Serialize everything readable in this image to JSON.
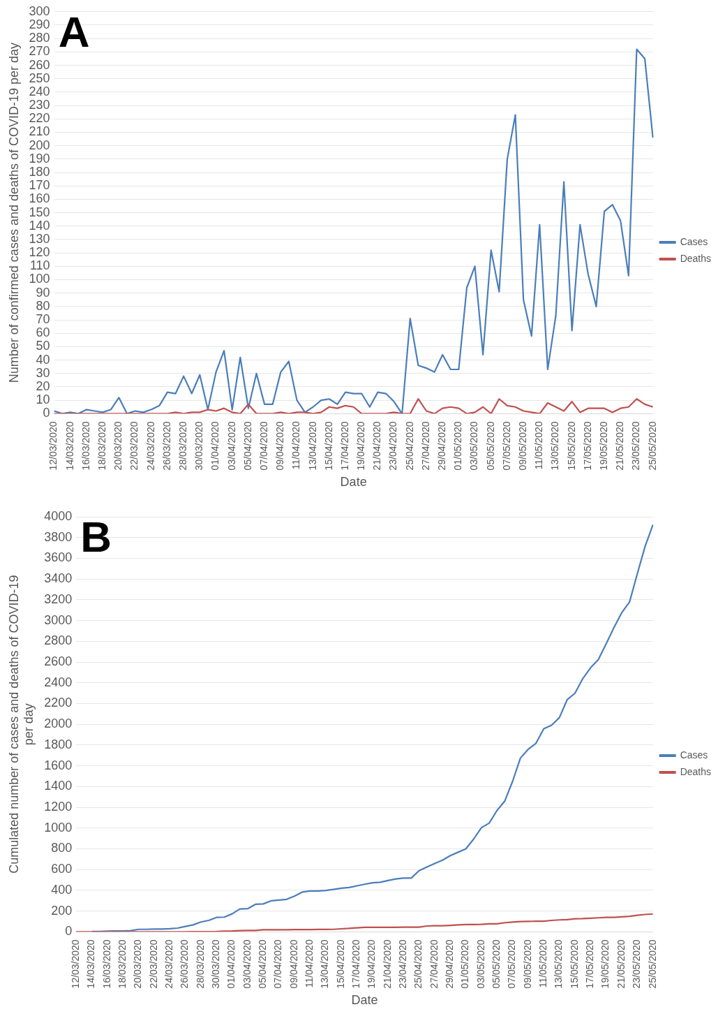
{
  "chart_data": [
    {
      "type": "line",
      "title": "A",
      "xlabel": "Date",
      "ylabel": "Number of confirmed cases and deaths of COVID-19 per day",
      "categories": [
        "12/03/2020",
        null,
        "14/03/2020",
        null,
        "16/03/2020",
        null,
        "18/03/2020",
        null,
        "20/03/2020",
        null,
        "22/03/2020",
        null,
        "24/03/2020",
        null,
        "26/03/2020",
        null,
        "28/03/2020",
        null,
        "30/03/2020",
        null,
        "01/04/2020",
        null,
        "03/04/2020",
        null,
        "05/04/2020",
        null,
        "07/04/2020",
        null,
        "09/04/2020",
        null,
        "11/04/2020",
        null,
        "13/04/2020",
        null,
        "15/04/2020",
        null,
        "17/04/2020",
        null,
        "19/04/2020",
        null,
        "21/04/2020",
        null,
        "23/04/2020",
        null,
        "25/04/2020",
        null,
        "27/04/2020",
        null,
        "29/04/2020",
        null,
        "01/05/2020",
        null,
        "03/05/2020",
        null,
        "05/05/2020",
        null,
        "07/05/2020",
        null,
        "09/05/2020",
        null,
        "11/05/2020",
        null,
        "13/05/2020",
        null,
        "15/05/2020",
        null,
        "17/05/2020",
        null,
        "19/05/2020",
        null,
        "21/05/2020",
        null,
        "23/05/2020",
        null,
        "25/05/2020"
      ],
      "series": [
        {
          "name": "Cases",
          "color": "#4a7ebb",
          "values": [
            2,
            0,
            1,
            0,
            3,
            2,
            1,
            3,
            12,
            0,
            2,
            1,
            3,
            6,
            16,
            15,
            28,
            15,
            29,
            3,
            31,
            47,
            3,
            42,
            4,
            30,
            7,
            7,
            31,
            39,
            10,
            1,
            5,
            10,
            11,
            7,
            16,
            15,
            15,
            5,
            16,
            15,
            9,
            0,
            71,
            36,
            34,
            31,
            44,
            33,
            33,
            94,
            110,
            44,
            122,
            91,
            190,
            223,
            85,
            58,
            141,
            33,
            73,
            173,
            62,
            141,
            104,
            80,
            151,
            156,
            144,
            103,
            272,
            265,
            206
          ]
        },
        {
          "name": "Deaths",
          "color": "#c0504d",
          "values": [
            0,
            0,
            0,
            0,
            0,
            0,
            0,
            0,
            0,
            0,
            0,
            0,
            0,
            0,
            0,
            1,
            0,
            1,
            1,
            3,
            2,
            4,
            1,
            0,
            7,
            0,
            0,
            0,
            1,
            0,
            1,
            1,
            0,
            1,
            5,
            4,
            6,
            5,
            0,
            0,
            0,
            0,
            1,
            0,
            0,
            11,
            2,
            0,
            4,
            5,
            4,
            0,
            1,
            5,
            0,
            11,
            6,
            5,
            2,
            1,
            0,
            8,
            5,
            2,
            9,
            1,
            4,
            4,
            4,
            1,
            4,
            5,
            11,
            7,
            5
          ]
        }
      ],
      "ylim": [
        0,
        300
      ],
      "yticks": [
        0,
        10,
        20,
        30,
        40,
        50,
        60,
        70,
        80,
        90,
        100,
        110,
        120,
        130,
        140,
        150,
        160,
        170,
        180,
        190,
        200,
        210,
        220,
        230,
        240,
        250,
        260,
        270,
        280,
        290,
        300
      ],
      "grid": "y",
      "legend": "right",
      "marker": "none",
      "line_style": "solid"
    },
    {
      "type": "line",
      "title": "B",
      "xlabel": "Date",
      "ylabel": "Cumulated number of cases and deaths of COVID-19 per day",
      "categories": [
        "12/03/2020",
        null,
        "14/03/2020",
        null,
        "16/03/2020",
        null,
        "18/03/2020",
        null,
        "20/03/2020",
        null,
        "22/03/2020",
        null,
        "24/03/2020",
        null,
        "26/03/2020",
        null,
        "28/03/2020",
        null,
        "30/03/2020",
        null,
        "01/04/2020",
        null,
        "03/04/2020",
        null,
        "05/04/2020",
        null,
        "07/04/2020",
        null,
        "09/04/2020",
        null,
        "11/04/2020",
        null,
        "13/04/2020",
        null,
        "15/04/2020",
        null,
        "17/04/2020",
        null,
        "19/04/2020",
        null,
        "21/04/2020",
        null,
        "23/04/2020",
        null,
        "25/04/2020",
        null,
        "27/04/2020",
        null,
        "29/04/2020",
        null,
        "01/05/2020",
        null,
        "03/05/2020",
        null,
        "05/05/2020",
        null,
        "07/05/2020",
        null,
        "09/05/2020",
        null,
        "11/05/2020",
        null,
        "13/05/2020",
        null,
        "15/05/2020",
        null,
        "17/05/2020",
        null,
        "19/05/2020",
        null,
        "21/05/2020",
        null,
        "23/05/2020",
        null,
        "25/05/2020"
      ],
      "series": [
        {
          "name": "Cases",
          "color": "#4a7ebb",
          "values": [
            null,
            null,
            3,
            3,
            6,
            8,
            9,
            12,
            24,
            24,
            26,
            27,
            30,
            36,
            52,
            67,
            95,
            110,
            139,
            142,
            173,
            220,
            223,
            265,
            269,
            299,
            306,
            313,
            344,
            383,
            393,
            394,
            399,
            409,
            420,
            427,
            443,
            458,
            473,
            478,
            494,
            509,
            518,
            518,
            589,
            625,
            659,
            690,
            734,
            767,
            800,
            894,
            1004,
            1048,
            1170,
            1261,
            1451,
            1674,
            1759,
            1817,
            1958,
            1991,
            2064,
            2237,
            2299,
            2440,
            2544,
            2624,
            2775,
            2931,
            3075,
            3178,
            3450,
            3715,
            3921
          ]
        },
        {
          "name": "Deaths",
          "color": "#c0504d",
          "values": [
            0,
            0,
            0,
            0,
            0,
            0,
            0,
            0,
            0,
            0,
            0,
            0,
            0,
            0,
            0,
            1,
            1,
            2,
            3,
            6,
            8,
            12,
            13,
            13,
            20,
            20,
            20,
            20,
            21,
            21,
            22,
            23,
            23,
            24,
            29,
            33,
            39,
            44,
            44,
            44,
            44,
            44,
            45,
            45,
            45,
            56,
            58,
            58,
            62,
            67,
            71,
            71,
            72,
            77,
            77,
            88,
            94,
            99,
            101,
            102,
            102,
            110,
            115,
            117,
            126,
            127,
            131,
            135,
            139,
            140,
            144,
            149,
            160,
            167,
            172
          ]
        }
      ],
      "ylim": [
        0,
        4000
      ],
      "yticks": [
        0,
        200,
        400,
        600,
        800,
        1000,
        1200,
        1400,
        1600,
        1800,
        2000,
        2200,
        2400,
        2600,
        2800,
        3000,
        3200,
        3400,
        3600,
        3800,
        4000
      ],
      "grid": "y",
      "legend": "right",
      "marker": "none",
      "line_style": "solid"
    }
  ]
}
